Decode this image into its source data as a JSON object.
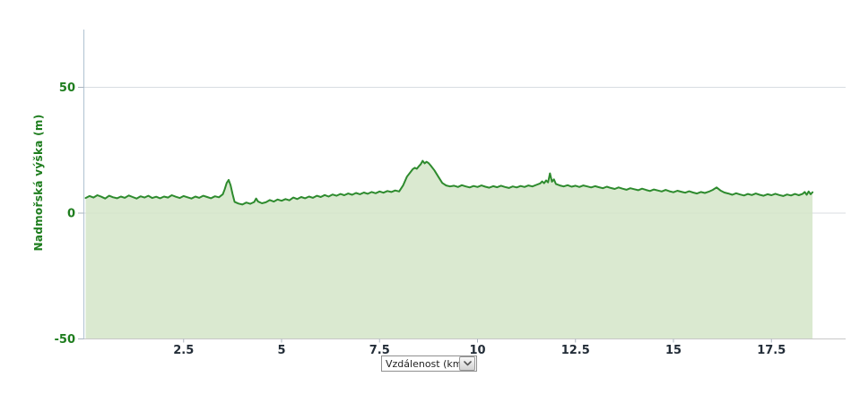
{
  "chart": {
    "y_axis": {
      "title": "Nadmořská výška (m)",
      "tick_labels": [
        "50",
        "0",
        "-50"
      ],
      "tick_values": [
        50,
        0,
        -50
      ]
    },
    "x_axis": {
      "tick_labels": [
        "2.5",
        "5",
        "7.5",
        "10",
        "12.5",
        "15",
        "17.5"
      ],
      "tick_values": [
        2.5,
        5,
        7.5,
        10,
        12.5,
        15,
        17.5
      ],
      "unit_selector_label": "Vzdálenost (km)"
    },
    "colors": {
      "line": "#2e8b2e",
      "fill": "#d3e5c8",
      "axis_line": "#b7c7d5",
      "gridline": "#d8dde2",
      "baseline": "#c8c8c8",
      "tick": "#aab4be",
      "y_label_text": "#1e7d1e",
      "x_label_text": "#232d38",
      "chevron": "#555555"
    }
  },
  "chart_data": {
    "type": "area",
    "title": "",
    "xlabel": "Vzdálenost (km)",
    "ylabel": "Nadmořská výška (m)",
    "xlim": [
      0,
      18.6
    ],
    "ylim": [
      -50,
      74
    ],
    "grid": true,
    "legend": false,
    "x": [
      0,
      0.1,
      0.2,
      0.3,
      0.4,
      0.5,
      0.6,
      0.7,
      0.8,
      0.9,
      1,
      1.1,
      1.2,
      1.3,
      1.4,
      1.5,
      1.6,
      1.7,
      1.8,
      1.9,
      2,
      2.1,
      2.2,
      2.3,
      2.4,
      2.5,
      2.6,
      2.7,
      2.8,
      2.9,
      3,
      3.1,
      3.2,
      3.3,
      3.4,
      3.5,
      3.55,
      3.6,
      3.65,
      3.7,
      3.75,
      3.8,
      3.9,
      4,
      4.1,
      4.2,
      4.3,
      4.35,
      4.4,
      4.5,
      4.6,
      4.7,
      4.8,
      4.9,
      5,
      5.1,
      5.2,
      5.3,
      5.4,
      5.5,
      5.6,
      5.7,
      5.8,
      5.9,
      6,
      6.1,
      6.2,
      6.3,
      6.4,
      6.5,
      6.6,
      6.7,
      6.8,
      6.9,
      7,
      7.1,
      7.2,
      7.3,
      7.4,
      7.5,
      7.6,
      7.7,
      7.8,
      7.9,
      8,
      8.1,
      8.2,
      8.3,
      8.35,
      8.4,
      8.45,
      8.5,
      8.55,
      8.6,
      8.65,
      8.7,
      8.75,
      8.8,
      8.9,
      9,
      9.1,
      9.2,
      9.3,
      9.4,
      9.5,
      9.6,
      9.7,
      9.8,
      9.9,
      10,
      10.1,
      10.2,
      10.3,
      10.4,
      10.5,
      10.6,
      10.7,
      10.8,
      10.9,
      11,
      11.1,
      11.2,
      11.3,
      11.4,
      11.5,
      11.6,
      11.65,
      11.7,
      11.75,
      11.8,
      11.85,
      11.9,
      11.95,
      12,
      12.1,
      12.2,
      12.3,
      12.4,
      12.5,
      12.6,
      12.7,
      12.8,
      12.9,
      13,
      13.1,
      13.2,
      13.3,
      13.4,
      13.5,
      13.6,
      13.7,
      13.8,
      13.9,
      14,
      14.1,
      14.2,
      14.3,
      14.4,
      14.5,
      14.6,
      14.7,
      14.8,
      14.9,
      15,
      15.1,
      15.2,
      15.3,
      15.4,
      15.5,
      15.6,
      15.7,
      15.8,
      15.9,
      16,
      16.1,
      16.2,
      16.3,
      16.4,
      16.5,
      16.6,
      16.7,
      16.8,
      16.9,
      17,
      17.1,
      17.2,
      17.3,
      17.4,
      17.5,
      17.6,
      17.7,
      17.8,
      17.9,
      18,
      18.1,
      18.2,
      18.3,
      18.35,
      18.4,
      18.45,
      18.5,
      18.55
    ],
    "y": [
      6.0,
      6.8,
      6.2,
      7.1,
      6.5,
      5.8,
      6.9,
      6.3,
      5.9,
      6.6,
      6.1,
      7.0,
      6.4,
      5.8,
      6.7,
      6.2,
      6.9,
      6.0,
      6.5,
      5.9,
      6.6,
      6.2,
      7.1,
      6.5,
      6.0,
      6.8,
      6.3,
      5.8,
      6.6,
      6.1,
      6.9,
      6.4,
      5.9,
      6.7,
      6.3,
      7.5,
      9.5,
      12.0,
      13.2,
      11.0,
      7.5,
      4.5,
      3.8,
      3.4,
      4.2,
      3.7,
      4.4,
      5.8,
      4.6,
      3.9,
      4.3,
      5.2,
      4.6,
      5.4,
      4.9,
      5.6,
      5.1,
      6.2,
      5.6,
      6.4,
      5.9,
      6.6,
      6.1,
      6.9,
      6.4,
      7.2,
      6.6,
      7.4,
      6.9,
      7.6,
      7.1,
      7.8,
      7.3,
      8.0,
      7.5,
      8.2,
      7.7,
      8.4,
      7.9,
      8.6,
      8.1,
      8.8,
      8.4,
      9.0,
      8.6,
      11.0,
      14.5,
      16.5,
      17.5,
      18.0,
      17.6,
      18.6,
      19.4,
      20.8,
      19.8,
      20.4,
      19.9,
      19.0,
      17.0,
      14.5,
      12.0,
      11.0,
      10.6,
      10.9,
      10.4,
      11.1,
      10.6,
      10.2,
      10.8,
      10.4,
      11.0,
      10.5,
      10.1,
      10.7,
      10.3,
      10.9,
      10.4,
      10.0,
      10.6,
      10.2,
      10.8,
      10.4,
      11.0,
      10.6,
      11.2,
      11.8,
      12.6,
      11.9,
      13.0,
      12.2,
      15.8,
      12.5,
      13.4,
      11.6,
      11.0,
      10.6,
      11.1,
      10.5,
      10.9,
      10.4,
      11.0,
      10.6,
      10.2,
      10.7,
      10.3,
      9.9,
      10.5,
      10.0,
      9.6,
      10.2,
      9.7,
      9.3,
      9.9,
      9.5,
      9.1,
      9.7,
      9.2,
      8.8,
      9.4,
      9.0,
      8.6,
      9.2,
      8.7,
      8.3,
      8.9,
      8.5,
      8.1,
      8.7,
      8.2,
      7.8,
      8.4,
      8.0,
      8.5,
      9.2,
      10.2,
      9.0,
      8.2,
      7.8,
      7.3,
      7.9,
      7.4,
      7.0,
      7.6,
      7.2,
      7.8,
      7.3,
      6.9,
      7.5,
      7.1,
      7.7,
      7.2,
      6.8,
      7.4,
      7.0,
      7.6,
      7.1,
      7.7,
      8.4,
      7.3,
      8.6,
      7.5,
      8.3
    ]
  }
}
